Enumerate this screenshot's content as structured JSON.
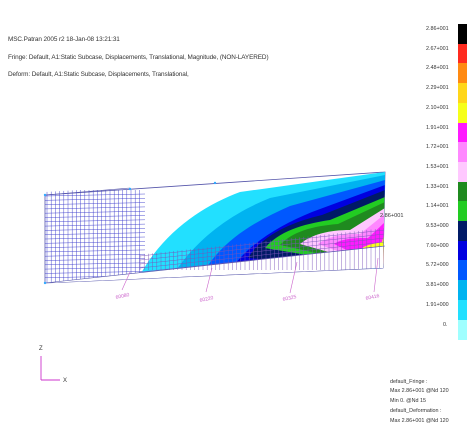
{
  "header": {
    "lines": [
      "MSC.Patran 2005 r2 18-Jan-08 13:21:31",
      "Fringe: Default, A1:Static Subcase, Displacements, Translational, Magnitude, (NON-LAYERED)",
      "Deform: Default, A1:Static Subcase, Displacements, Translational,"
    ]
  },
  "legend": {
    "values": [
      "2.86+001",
      "2.67+001",
      "2.48+001",
      "2.29+001",
      "2.10+001",
      "1.91+001",
      "1.72+001",
      "1.53+001",
      "1.33+001",
      "1.14+001",
      "9.53+000",
      "7.60+000",
      "5.72+000",
      "3.81+000",
      "1.91+000",
      "0."
    ],
    "colors": [
      "#000000",
      "#ff2b1f",
      "#ff8a12",
      "#ffd61a",
      "#f6ff1a",
      "#ff1aff",
      "#ff88ff",
      "#ffc8ff",
      "#1f8a1f",
      "#22cc22",
      "#001a66",
      "#0000e0",
      "#0058ff",
      "#00b3f0",
      "#22e0ff",
      "#9fffff"
    ]
  },
  "model": {
    "max_marker": "2.86+001",
    "node_labels": [
      "60080",
      "60220",
      "60325",
      "60416"
    ]
  },
  "axes": {
    "z_label": "Z",
    "x_label": "X"
  },
  "footer": {
    "lines": [
      "default_Fringe :",
      "Max 2.86+001 @Nd 120",
      "Min 0. @Nd 15",
      "default_Deformation :",
      "Max 2.86+001 @Nd 120"
    ]
  }
}
